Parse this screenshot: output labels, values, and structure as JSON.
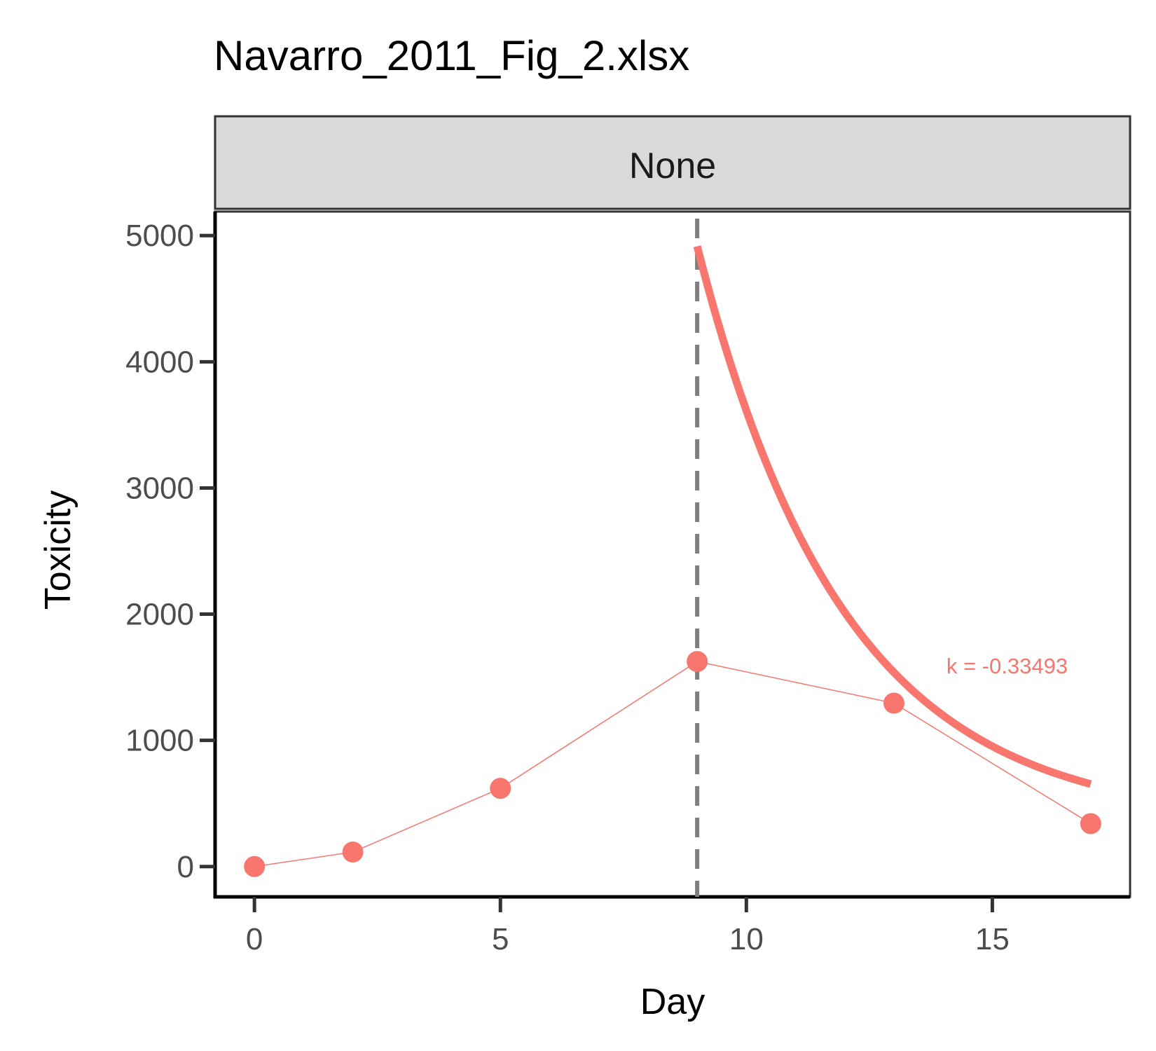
{
  "chart_data": {
    "type": "line",
    "title": "Navarro_2011_Fig_2.xlsx",
    "facet_label": "None",
    "xlabel": "Day",
    "ylabel": "Toxicity",
    "xlim": [
      -0.8,
      17.8
    ],
    "ylim": [
      -240,
      5190
    ],
    "x_ticks": [
      0,
      5,
      10,
      15
    ],
    "y_ticks": [
      0,
      1000,
      2000,
      3000,
      4000,
      5000
    ],
    "x_tick_labels": [
      "0",
      "5",
      "10",
      "15"
    ],
    "y_tick_labels": [
      "0",
      "1000",
      "2000",
      "3000",
      "4000",
      "5000"
    ],
    "grid": false,
    "series": [
      {
        "values": [
          {
            "x": 0,
            "y": 0
          },
          {
            "x": 2,
            "y": 115
          },
          {
            "x": 5,
            "y": 620
          },
          {
            "x": 9,
            "y": 1625
          },
          {
            "x": 13,
            "y": 1295
          },
          {
            "x": 17,
            "y": 340
          }
        ]
      }
    ],
    "fit": {
      "type": "exponential",
      "k": -0.33493,
      "x_start": 9,
      "x_end": 17,
      "y_start": 4915,
      "y_end": 340
    },
    "vline": {
      "x": 9,
      "style": "dashed"
    },
    "annotation": {
      "text": "k = -0.33493",
      "x": 15.3,
      "y": 1530
    },
    "colors": {
      "series": "#F8766D",
      "vline": "#7f7f7f",
      "strip_fill": "#d9d9d9",
      "axis": "#000000",
      "tick_text": "#4d4d4d"
    }
  }
}
